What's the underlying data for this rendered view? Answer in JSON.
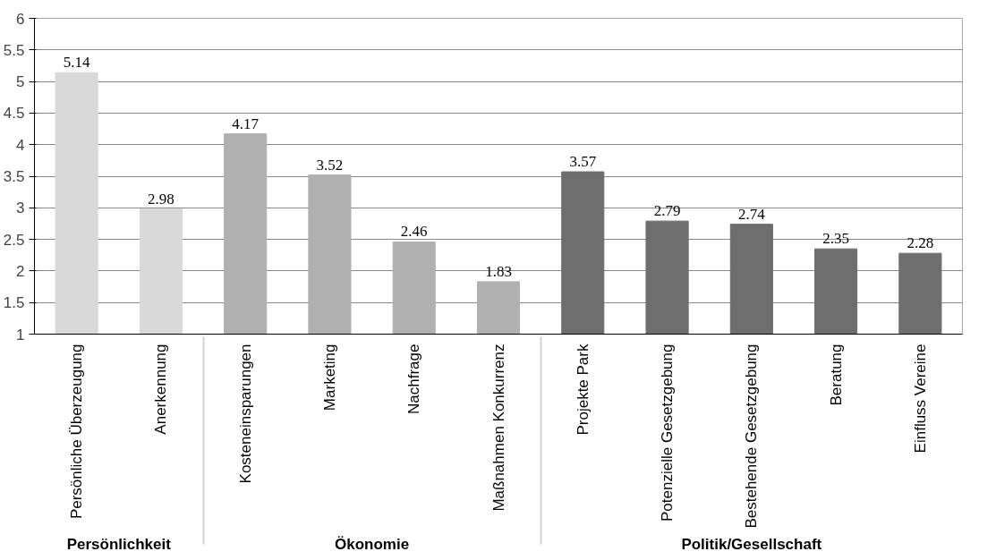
{
  "chart_data": {
    "type": "bar",
    "categories": [
      "Persönliche Überzeugung",
      "Anerkennung",
      "Kosteneinsparungen",
      "Marketing",
      "Nachfrage",
      "Maßnahmen Konkurrenz",
      "Projekte Park",
      "Potenzielle Gesetzgebung",
      "Bestehende Gesetzgebung",
      "Beratung",
      "Einfluss Vereine"
    ],
    "values": [
      5.14,
      2.98,
      4.17,
      3.52,
      2.46,
      1.83,
      3.57,
      2.79,
      2.74,
      2.35,
      2.28
    ],
    "colors": [
      "#d9d9d9",
      "#d9d9d9",
      "#b0b0b0",
      "#b0b0b0",
      "#b0b0b0",
      "#b0b0b0",
      "#6e6e6e",
      "#6e6e6e",
      "#6e6e6e",
      "#6e6e6e",
      "#6e6e6e"
    ],
    "annotations": [
      "Persönlichkeit",
      "Ökonomie",
      "Politik/Gesellschaft"
    ],
    "ylim": [
      1,
      6
    ],
    "yticks": [
      1,
      1.5,
      2,
      2.5,
      3,
      3.5,
      4,
      4.5,
      5,
      5.5,
      6
    ],
    "grid": "y",
    "data_labels": true
  }
}
